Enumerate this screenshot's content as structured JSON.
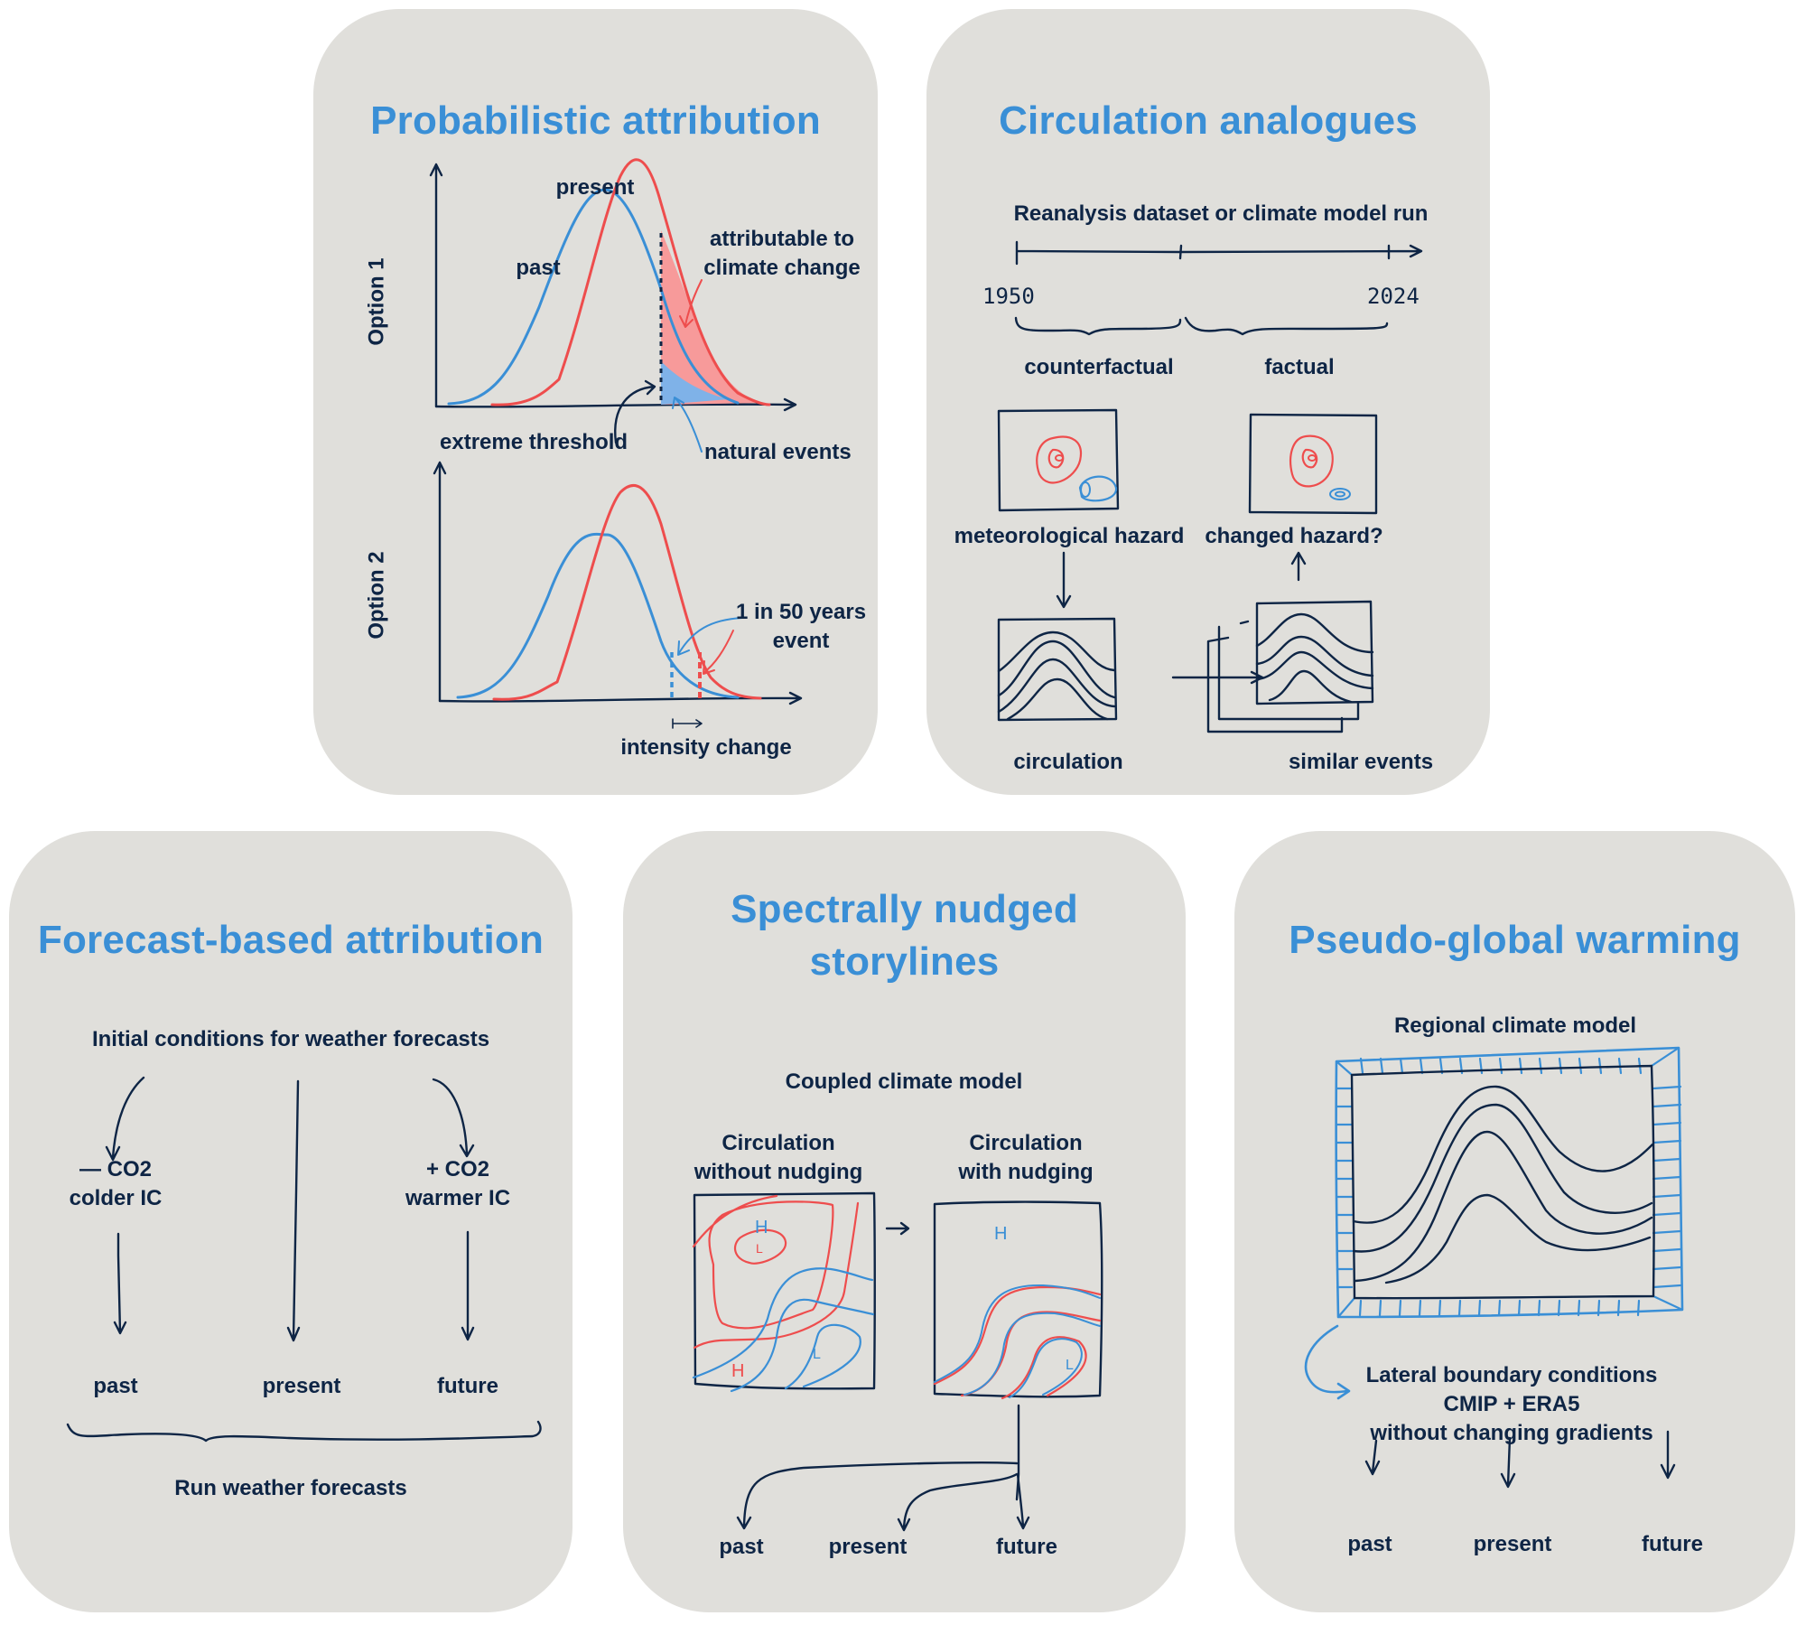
{
  "colors": {
    "panel_bg": "#e0dfdb",
    "title": "#3a8fd6",
    "ink": "#0e2545",
    "red": "#ee4d4d",
    "blue": "#3a8fd6",
    "red_fill": "#f79a9a",
    "blue_fill": "#7fb2e8"
  },
  "probabilistic": {
    "title": "Probabilistic attribution",
    "option1": {
      "axis_label": "Option 1",
      "present": "present",
      "past": "past",
      "attributable": [
        "attributable to",
        "climate change"
      ],
      "threshold": "extreme threshold",
      "natural": "natural events"
    },
    "option2": {
      "axis_label": "Option 2",
      "event": [
        "1 in 50 years",
        "event"
      ],
      "intensity": "intensity change"
    }
  },
  "analogues": {
    "title": "Circulation analogues",
    "dataset": "Reanalysis dataset or climate model run",
    "year_start": "1950",
    "year_end": "2024",
    "counterfactual": "counterfactual",
    "factual": "factual",
    "hazard": "meteorological hazard",
    "changed": "changed hazard?",
    "circulation": "circulation",
    "similar": "similar events"
  },
  "forecast": {
    "title": "Forecast-based attribution",
    "initial": "Initial conditions for weather forecasts",
    "minus": [
      "— CO2",
      "colder IC"
    ],
    "plus": [
      "+ CO2",
      "warmer IC"
    ],
    "past": "past",
    "present": "present",
    "future": "future",
    "run": "Run weather forecasts"
  },
  "nudged": {
    "title": [
      "Spectrally nudged",
      "storylines"
    ],
    "model": "Coupled climate model",
    "without": [
      "Circulation",
      "without nudging"
    ],
    "with": [
      "Circulation",
      "with nudging"
    ],
    "marks": {
      "high": "H",
      "low": "L"
    },
    "past": "past",
    "present": "present",
    "future": "future"
  },
  "pgw": {
    "title": "Pseudo-global warming",
    "model": "Regional climate model",
    "lbc": [
      "Lateral boundary conditions",
      "CMIP + ERA5",
      "without changing gradients"
    ],
    "past": "past",
    "present": "present",
    "future": "future"
  }
}
